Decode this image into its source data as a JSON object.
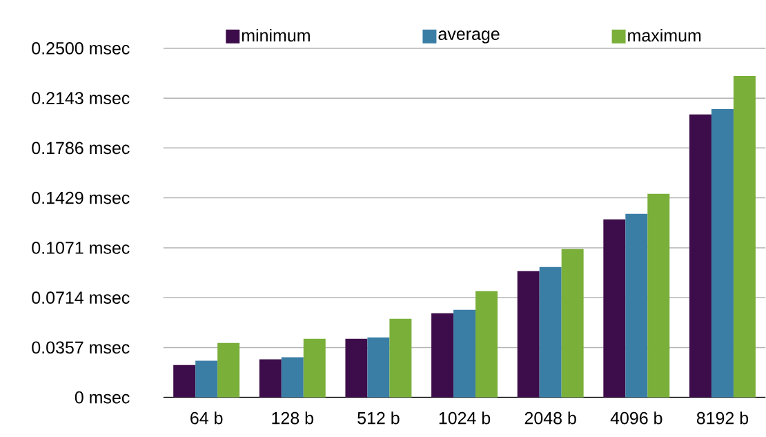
{
  "chart_data": {
    "type": "bar",
    "categories": [
      "64 b",
      "128 b",
      "512 b",
      "1024 b",
      "2048 b",
      "4096 b",
      "8192 b"
    ],
    "series": [
      {
        "name": "minimum",
        "color": "#3d0c4a",
        "values": [
          0.0232,
          0.0272,
          0.042,
          0.0603,
          0.0904,
          0.1275,
          0.2026
        ]
      },
      {
        "name": "average",
        "color": "#3a7ea5",
        "values": [
          0.0262,
          0.0287,
          0.043,
          0.0627,
          0.0934,
          0.1314,
          0.2065
        ]
      },
      {
        "name": "maximum",
        "color": "#7aaf3a",
        "values": [
          0.039,
          0.042,
          0.0563,
          0.0761,
          0.1062,
          0.1458,
          0.2302
        ]
      }
    ],
    "ylim": [
      0,
      0.25
    ],
    "yticks": [
      {
        "value": 0,
        "label": "0 msec"
      },
      {
        "value": 0.0357,
        "label": "0.0357 msec"
      },
      {
        "value": 0.0714,
        "label": "0.0714 msec"
      },
      {
        "value": 0.1071,
        "label": "0.1071 msec"
      },
      {
        "value": 0.1429,
        "label": "0.1429 msec"
      },
      {
        "value": 0.1786,
        "label": "0.1786 msec"
      },
      {
        "value": 0.2143,
        "label": "0.2143 msec"
      },
      {
        "value": 0.25,
        "label": "0.2500 msec"
      }
    ],
    "grid": "y",
    "legend": "top"
  }
}
